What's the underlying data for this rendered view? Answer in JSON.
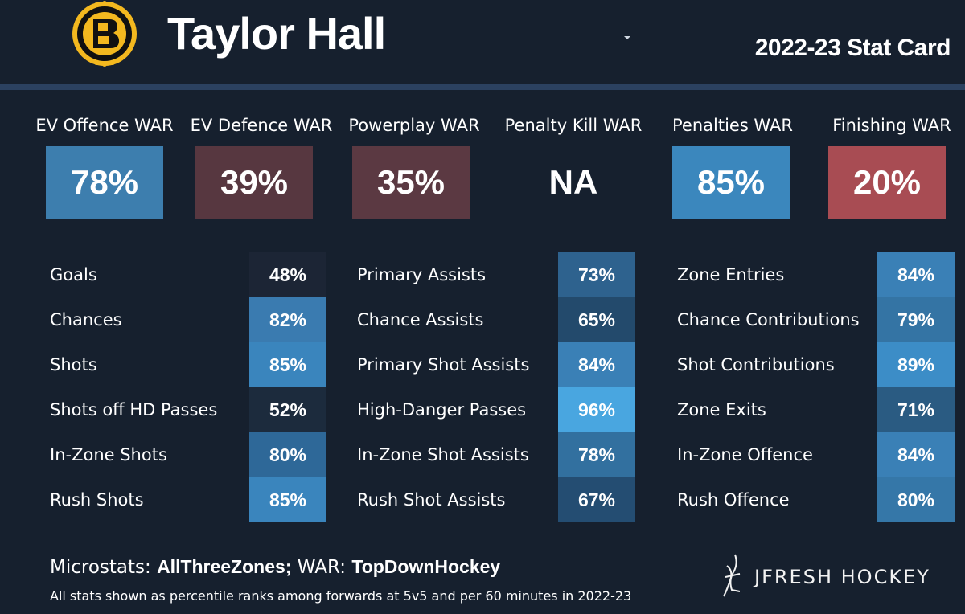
{
  "header": {
    "player_name": "Taylor Hall",
    "season_label": "2022-23 Stat Card",
    "logo_icon": "bruins-b-logo-icon",
    "dropdown_icon": "caret-down-icon"
  },
  "war_cards": [
    {
      "title": "EV Offence WAR",
      "value": "78%",
      "color": "#3d7eae"
    },
    {
      "title": "EV Defence WAR",
      "value": "39%",
      "color": "#573740"
    },
    {
      "title": "Powerplay WAR",
      "value": "35%",
      "color": "#5b3942"
    },
    {
      "title": "Penalty Kill WAR",
      "value": "NA",
      "color": "#16202e"
    },
    {
      "title": "Penalties WAR",
      "value": "85%",
      "color": "#3b87bd"
    },
    {
      "title": "Finishing WAR",
      "value": "20%",
      "color": "#a84c53"
    }
  ],
  "stat_columns": [
    {
      "rows": [
        {
          "label": "Goals",
          "value": "48%",
          "color": "#1c2535"
        },
        {
          "label": "Chances",
          "value": "82%",
          "color": "#3a7bb0"
        },
        {
          "label": "Shots",
          "value": "85%",
          "color": "#3a85bd"
        },
        {
          "label": "Shots off HD Passes",
          "value": "52%",
          "color": "#1c2b3d"
        },
        {
          "label": "In-Zone Shots",
          "value": "80%",
          "color": "#2e6898"
        },
        {
          "label": "Rush Shots",
          "value": "85%",
          "color": "#3a85bd"
        }
      ]
    },
    {
      "rows": [
        {
          "label": "Primary Assists",
          "value": "73%",
          "color": "#2e628e"
        },
        {
          "label": "Chance Assists",
          "value": "65%",
          "color": "#234a6c"
        },
        {
          "label": "Primary Shot Assists",
          "value": "84%",
          "color": "#3a80b6"
        },
        {
          "label": "High-Danger Passes",
          "value": "96%",
          "color": "#49a6e0"
        },
        {
          "label": "In-Zone Shot Assists",
          "value": "78%",
          "color": "#32709f"
        },
        {
          "label": "Rush Shot Assists",
          "value": "67%",
          "color": "#244d72"
        }
      ]
    },
    {
      "rows": [
        {
          "label": "Zone Entries",
          "value": "84%",
          "color": "#3a80b6"
        },
        {
          "label": "Chance Contributions",
          "value": "79%",
          "color": "#3474a4"
        },
        {
          "label": "Shot Contributions",
          "value": "89%",
          "color": "#3c8dc7"
        },
        {
          "label": "Zone Exits",
          "value": "71%",
          "color": "#2a5b82"
        },
        {
          "label": "In-Zone Offence",
          "value": "84%",
          "color": "#3a80b6"
        },
        {
          "label": "Rush Offence",
          "value": "80%",
          "color": "#3577a8"
        }
      ]
    }
  ],
  "footer": {
    "microstats_prefix": "Microstats: ",
    "microstats_source": "AllThreeZones;",
    "war_prefix": " WAR: ",
    "war_source": "TopDownHockey",
    "footnote": "All stats shown as percentile ranks among forwards at 5v5 and per 60 minutes in 2022-23",
    "brand": "JFRESH HOCKEY",
    "brand_icon": "jfresh-hockey-stick-logo-icon"
  }
}
